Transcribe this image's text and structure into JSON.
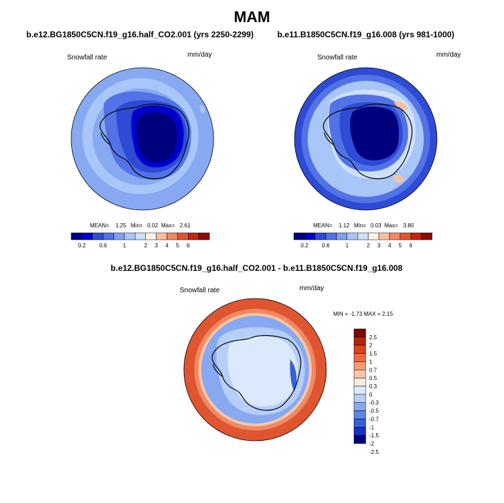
{
  "title": "MAM",
  "colors": {
    "seq_scale": [
      "#00007f",
      "#0000ca",
      "#2e4bd5",
      "#5273e6",
      "#7ea2f0",
      "#a8c6f7",
      "#cfe0fb",
      "#fff2e2",
      "#f7c1a1",
      "#ef8a63",
      "#df5530",
      "#c22410",
      "#8b0a00"
    ],
    "diff_scale": [
      "#00007f",
      "#1830c0",
      "#3460d8",
      "#5a86e8",
      "#86a9f2",
      "#b5cff8",
      "#dce9fc",
      "#fbeadb",
      "#f7c6a8",
      "#f29b75",
      "#ea6a43",
      "#d8461e",
      "#b32408",
      "#7a0600"
    ],
    "coast": "#000000"
  },
  "panels": [
    {
      "title": "b.e12.BG1850C5CN.f19_g16.half_CO2.001 (yrs 2250-2299)",
      "field_label": "Snowfall rate",
      "units": "mm/day",
      "mean_label": "MEAN=",
      "mean": "1.25",
      "min_label": "Min=",
      "min": "0.02",
      "max_label": "Max=",
      "max": "2.61",
      "colorbar_ticks": [
        "0.2",
        "0.6",
        "1",
        "2",
        "3",
        "4",
        "5",
        "6"
      ]
    },
    {
      "title": "b.e11.B1850C5CN.f19_g16.008 (yrs 981-1000)",
      "field_label": "Snowfall rate",
      "units": "mm/day",
      "mean_label": "MEAN=",
      "mean": "1.12",
      "min_label": "Min=",
      "min": "0.03",
      "max_label": "Max=",
      "max": "3.80",
      "colorbar_ticks": [
        "0.2",
        "0.6",
        "1",
        "2",
        "3",
        "4",
        "5",
        "6"
      ]
    },
    {
      "title": "b.e12.BG1850C5CN.f19_g16.half_CO2.001 - b.e11.B1850C5CN.f19_g16.008",
      "field_label": "Snowfall rate",
      "units": "mm/day",
      "minmax_text": "MIN = -1.73 MAX = 2.15",
      "colorbar_ticks": [
        "2.5",
        "2",
        "1.5",
        "1",
        "0.7",
        "0.5",
        "0.3",
        "0",
        "-0.3",
        "-0.5",
        "-0.7",
        "-1",
        "-1.5",
        "-2",
        "-2.5"
      ]
    }
  ]
}
